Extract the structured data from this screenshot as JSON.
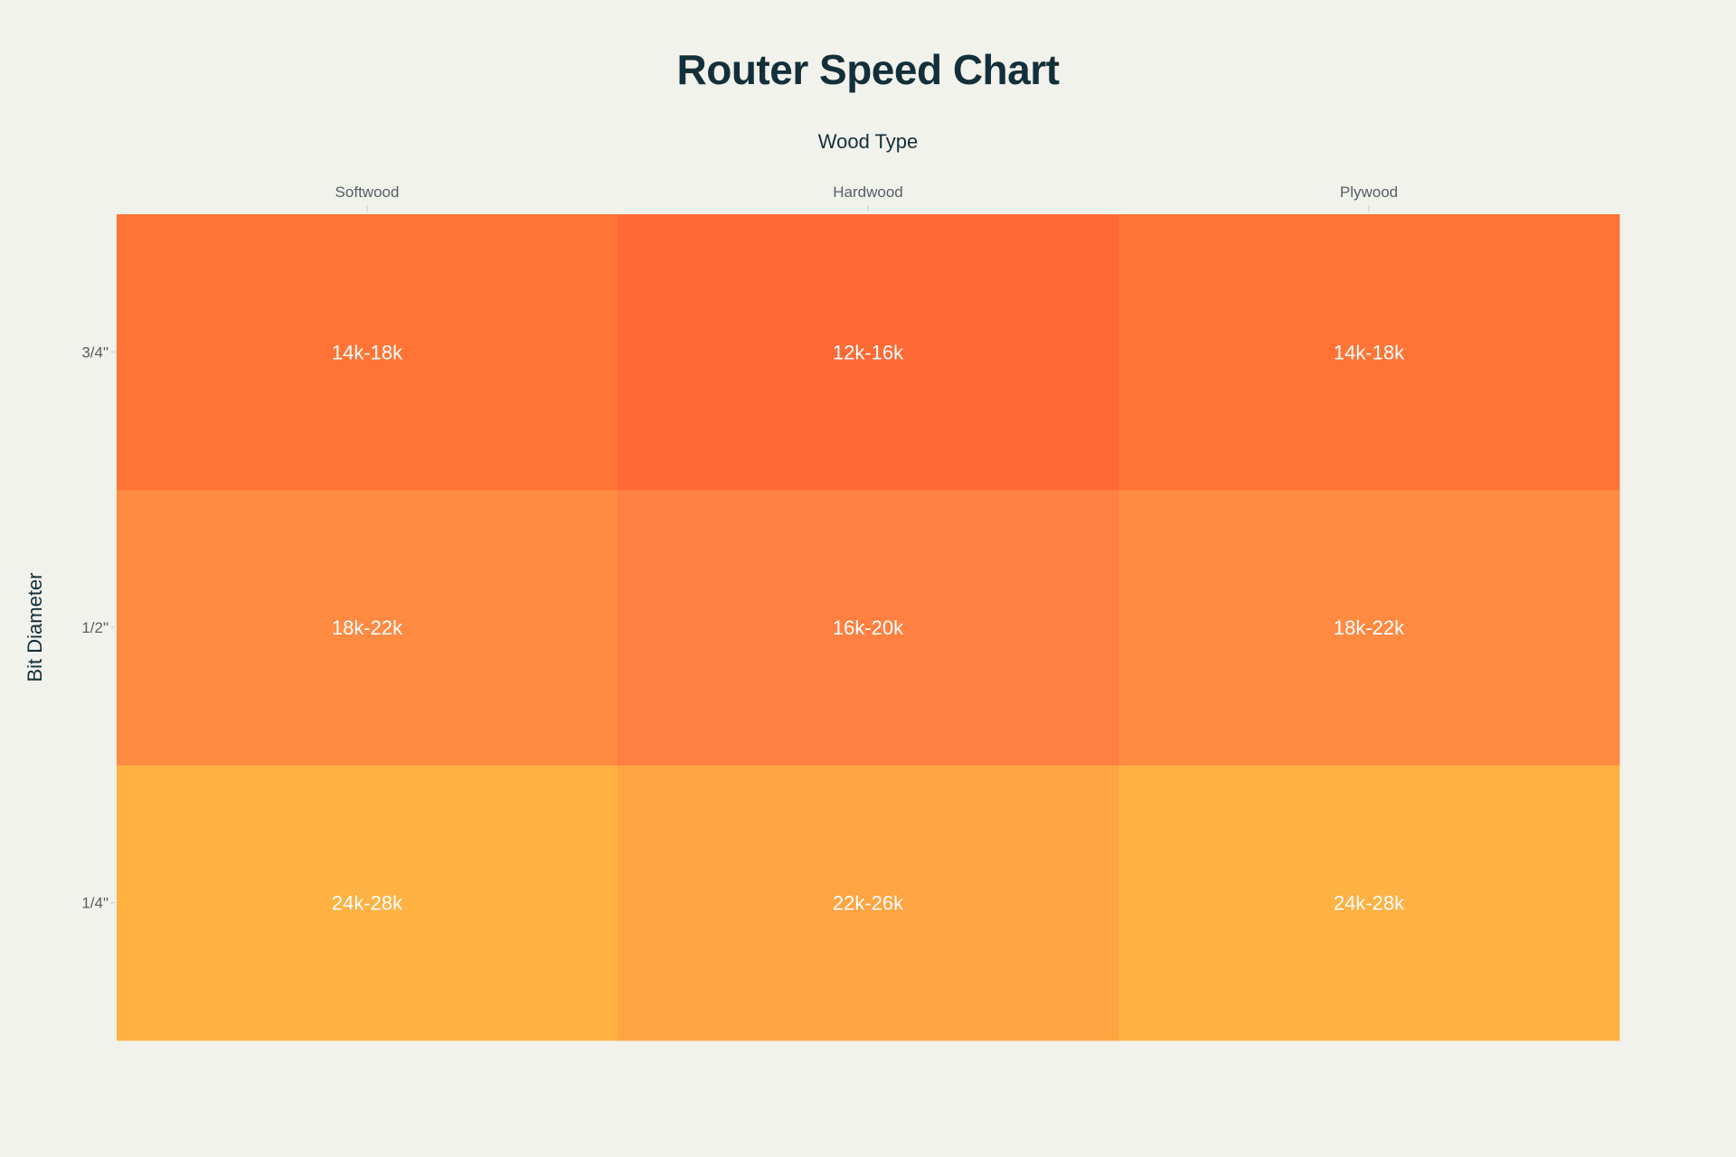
{
  "chart_data": {
    "type": "heatmap",
    "title": "Router Speed Chart",
    "xlabel": "Wood Type",
    "ylabel": "Bit Diameter",
    "x_categories": [
      "Softwood",
      "Hardwood",
      "Plywood"
    ],
    "y_categories": [
      "1/4\"",
      "1/2\"",
      "3/4\""
    ],
    "cell_text": [
      [
        "24k-28k",
        "22k-26k",
        "24k-28k"
      ],
      [
        "18k-22k",
        "16k-20k",
        "18k-22k"
      ],
      [
        "14k-18k",
        "12k-16k",
        "14k-18k"
      ]
    ],
    "cell_colors": [
      [
        "#ffb142",
        "#ffa442",
        "#ffb142"
      ],
      [
        "#ff8a42",
        "#ff8040",
        "#ff8a42"
      ],
      [
        "#ff7435",
        "#ff6935",
        "#ff7435"
      ]
    ],
    "x_axis_position": "top",
    "grid": false,
    "colorbar": false
  }
}
